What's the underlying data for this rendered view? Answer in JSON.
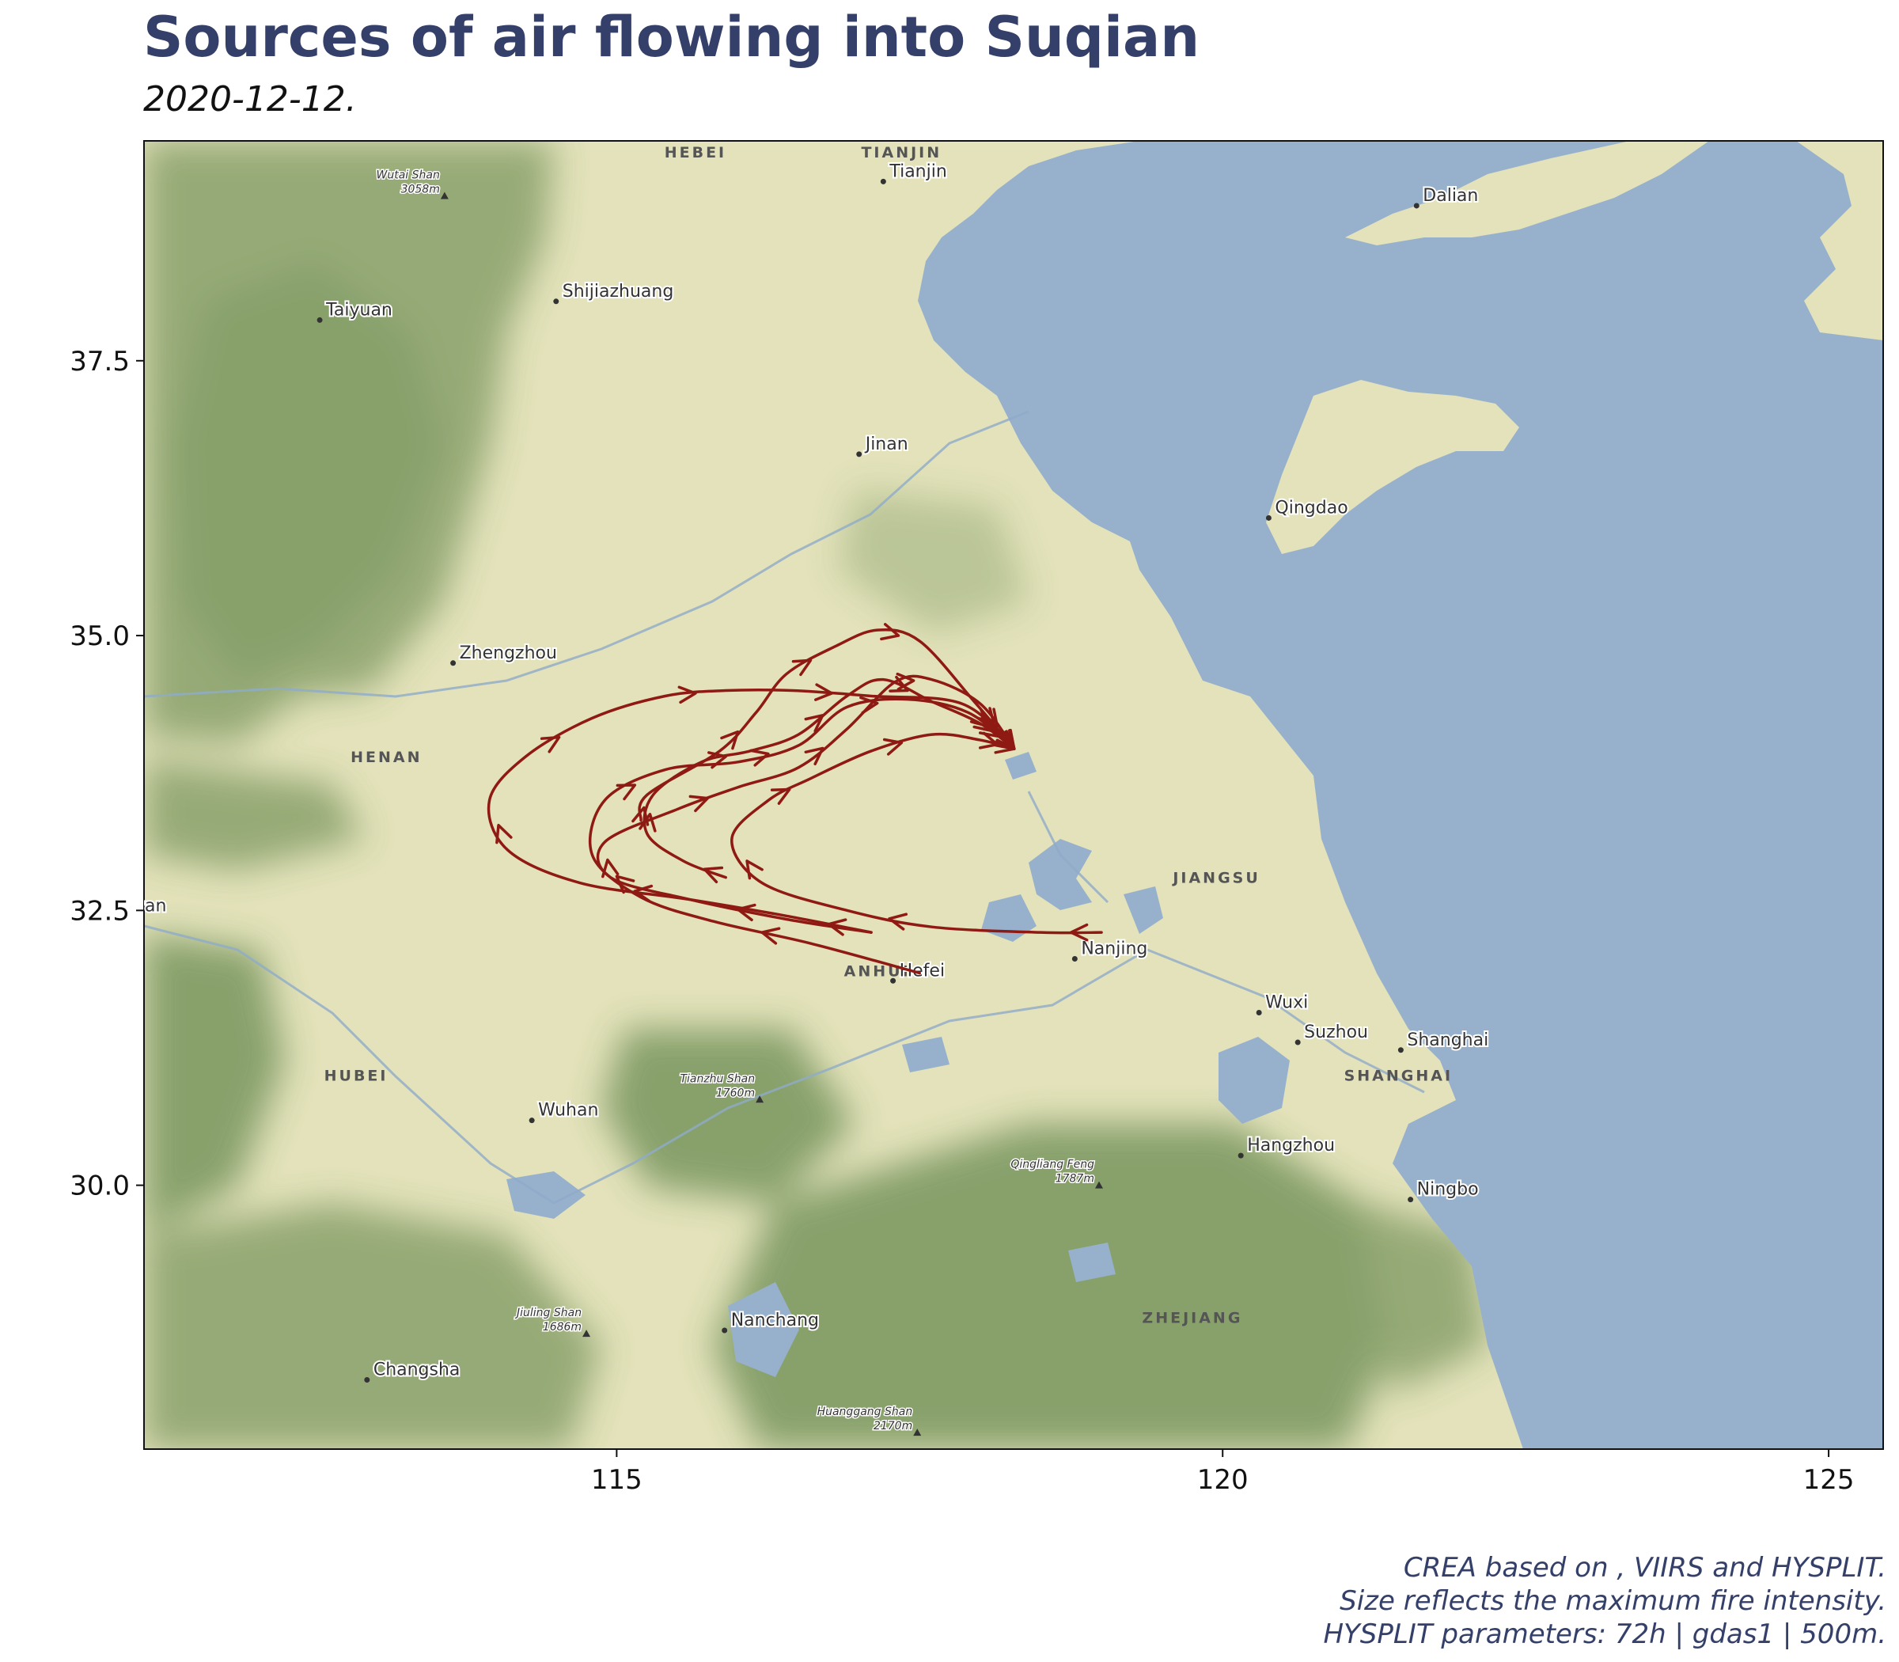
{
  "title": "Sources of air flowing into Suqian",
  "subtitle": "2020-12-12.",
  "caption": [
    "CREA based on , VIIRS and HYSPLIT.",
    "Size reflects the maximum fire intensity.",
    "HYSPLIT parameters: 72h | gdas1 | 500m."
  ],
  "map": {
    "extent": {
      "lon": [
        111.1,
        125.45
      ],
      "lat": [
        27.6,
        39.5
      ]
    },
    "x_ticks": [
      {
        "value": 115,
        "label": "115"
      },
      {
        "value": 120,
        "label": "120"
      },
      {
        "value": 125,
        "label": "125"
      }
    ],
    "y_ticks": [
      {
        "value": 30.0,
        "label": "30.0"
      },
      {
        "value": 32.5,
        "label": "32.5"
      },
      {
        "value": 35.0,
        "label": "35.0"
      },
      {
        "value": 37.5,
        "label": "37.5"
      }
    ],
    "colors": {
      "land": "#e3e2ba",
      "water": "#97b1cd",
      "mountain": "#7e9a63",
      "trajectory": "#8f1a14",
      "title": "#344069"
    },
    "cities": [
      {
        "name": "Tianjin",
        "lon": 117.2,
        "lat": 39.13
      },
      {
        "name": "Dalian",
        "lon": 121.6,
        "lat": 38.91
      },
      {
        "name": "Shijiazhuang",
        "lon": 114.5,
        "lat": 38.04
      },
      {
        "name": "Taiyuan",
        "lon": 112.55,
        "lat": 37.87
      },
      {
        "name": "Jinan",
        "lon": 117.0,
        "lat": 36.65
      },
      {
        "name": "Qingdao",
        "lon": 120.38,
        "lat": 36.07
      },
      {
        "name": "Zhengzhou",
        "lon": 113.65,
        "lat": 34.75
      },
      {
        "name": "Nanjing",
        "lon": 118.78,
        "lat": 32.06
      },
      {
        "name": "Hefei",
        "lon": 117.28,
        "lat": 31.86
      },
      {
        "name": "Wuxi",
        "lon": 120.3,
        "lat": 31.57
      },
      {
        "name": "Suzhou",
        "lon": 120.62,
        "lat": 31.3
      },
      {
        "name": "Shanghai",
        "lon": 121.47,
        "lat": 31.23
      },
      {
        "name": "Wuhan",
        "lon": 114.3,
        "lat": 30.59
      },
      {
        "name": "Hangzhou",
        "lon": 120.15,
        "lat": 30.27
      },
      {
        "name": "Ningbo",
        "lon": 121.55,
        "lat": 29.87
      },
      {
        "name": "Nanchang",
        "lon": 115.89,
        "lat": 28.68
      },
      {
        "name": "Changsha",
        "lon": 112.94,
        "lat": 28.23
      }
    ],
    "cut_labels": [
      {
        "name": "yan",
        "lon": 111.1,
        "lat": 32.55
      }
    ],
    "provinces": [
      {
        "name": "HEBEI",
        "lon": 115.65,
        "lat": 39.35
      },
      {
        "name": "TIANJIN",
        "lon": 117.35,
        "lat": 39.35
      },
      {
        "name": "HENAN",
        "lon": 113.1,
        "lat": 33.85
      },
      {
        "name": "JIANGSU",
        "lon": 119.95,
        "lat": 32.75
      },
      {
        "name": "ANHUI",
        "lon": 117.15,
        "lat": 31.9
      },
      {
        "name": "HUBEI",
        "lon": 112.85,
        "lat": 30.95
      },
      {
        "name": "SHANGHAI",
        "lon": 121.45,
        "lat": 30.95
      },
      {
        "name": "ZHEJIANG",
        "lon": 119.75,
        "lat": 28.75
      }
    ],
    "peaks": [
      {
        "name": "Wutai Shan",
        "elev": "3058m",
        "lon": 113.58,
        "lat": 39.0
      },
      {
        "name": "Tianzhu Shan",
        "elev": "1760m",
        "lon": 116.18,
        "lat": 30.78
      },
      {
        "name": "Qingliang Feng",
        "elev": "1787m",
        "lon": 118.98,
        "lat": 30.0
      },
      {
        "name": "Jiuling Shan",
        "elev": "1686m",
        "lon": 114.75,
        "lat": 28.65
      },
      {
        "name": "Huanggang Shan",
        "elev": "2170m",
        "lon": 117.48,
        "lat": 27.75
      }
    ],
    "destination": {
      "name": "Suqian",
      "lon": 118.28,
      "lat": 33.97
    },
    "trajectories": [
      {
        "points": [
          [
            118.28,
            33.97
          ],
          [
            117.9,
            34.3
          ],
          [
            117.4,
            34.42
          ],
          [
            116.9,
            34.35
          ],
          [
            116.5,
            34.0
          ],
          [
            116.0,
            33.85
          ],
          [
            115.4,
            33.78
          ],
          [
            114.9,
            33.5
          ],
          [
            114.8,
            33.0
          ],
          [
            115.2,
            32.62
          ],
          [
            115.8,
            32.4
          ],
          [
            116.6,
            32.2
          ],
          [
            117.5,
            31.93
          ]
        ]
      },
      {
        "points": [
          [
            118.28,
            33.97
          ],
          [
            118.0,
            34.2
          ],
          [
            117.6,
            34.4
          ],
          [
            117.2,
            34.6
          ],
          [
            116.9,
            34.45
          ],
          [
            116.5,
            34.1
          ],
          [
            116.1,
            33.95
          ],
          [
            115.7,
            33.85
          ],
          [
            115.3,
            33.55
          ],
          [
            115.25,
            33.2
          ],
          [
            115.55,
            32.95
          ],
          [
            115.9,
            32.8
          ]
        ]
      },
      {
        "points": [
          [
            118.28,
            33.97
          ],
          [
            118.0,
            34.38
          ],
          [
            117.6,
            34.6
          ],
          [
            117.3,
            34.58
          ],
          [
            116.9,
            34.15
          ],
          [
            116.5,
            33.8
          ],
          [
            116.0,
            33.62
          ],
          [
            115.5,
            33.42
          ],
          [
            114.9,
            33.12
          ],
          [
            114.95,
            32.8
          ],
          [
            115.6,
            32.6
          ],
          [
            116.4,
            32.42
          ],
          [
            117.1,
            32.3
          ]
        ]
      },
      {
        "points": [
          [
            118.28,
            33.97
          ],
          [
            118.0,
            34.05
          ],
          [
            117.6,
            34.1
          ],
          [
            117.1,
            33.95
          ],
          [
            116.6,
            33.7
          ],
          [
            116.25,
            33.5
          ],
          [
            115.95,
            33.15
          ],
          [
            116.2,
            32.75
          ],
          [
            116.9,
            32.5
          ],
          [
            117.6,
            32.35
          ],
          [
            118.5,
            32.3
          ],
          [
            119.0,
            32.3
          ]
        ]
      },
      {
        "points": [
          [
            118.28,
            33.97
          ],
          [
            117.95,
            34.4
          ],
          [
            117.5,
            34.95
          ],
          [
            117.15,
            35.05
          ],
          [
            116.8,
            34.9
          ],
          [
            116.4,
            34.65
          ],
          [
            116.15,
            34.3
          ],
          [
            115.85,
            33.95
          ],
          [
            115.25,
            33.55
          ],
          [
            115.2,
            33.32
          ]
        ]
      },
      {
        "points": [
          [
            118.28,
            33.97
          ],
          [
            117.85,
            34.38
          ],
          [
            117.1,
            34.45
          ],
          [
            116.45,
            34.5
          ],
          [
            115.9,
            34.5
          ],
          [
            115.4,
            34.45
          ],
          [
            114.8,
            34.25
          ],
          [
            114.25,
            33.9
          ],
          [
            113.95,
            33.5
          ],
          [
            114.1,
            33.05
          ],
          [
            114.7,
            32.75
          ],
          [
            115.6,
            32.6
          ],
          [
            116.4,
            32.45
          ],
          [
            117.1,
            32.3
          ]
        ]
      }
    ]
  }
}
